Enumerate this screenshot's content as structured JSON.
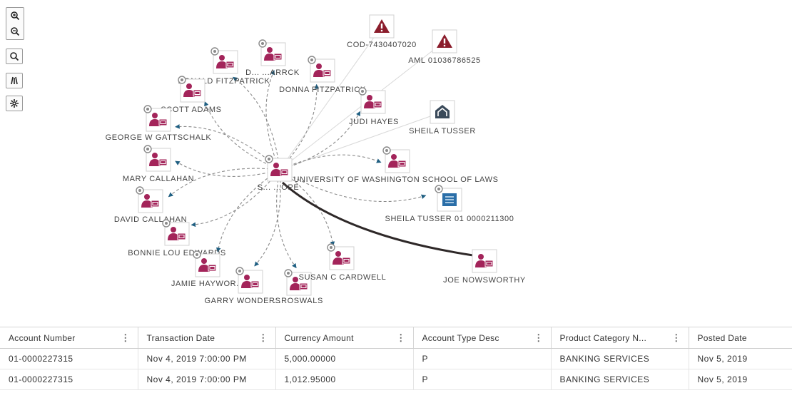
{
  "toolbar": {
    "zoom_in": "zoom-in-icon",
    "zoom_out": "zoom-out-icon",
    "reset": "reset-icon",
    "layout": "layout-icon",
    "settings": "settings-icon"
  },
  "colors": {
    "person": "#a3245a",
    "alert": "#8b1d2c",
    "house": "#3a4a5a",
    "account": "#2a6ea8",
    "edge": "#8a8a8a",
    "arrow": "#1f5f82",
    "strong_edge": "#2e2828"
  },
  "graph": {
    "center": {
      "id": "center",
      "label": "S... ...OPE",
      "type": "person",
      "badge": true
    },
    "nodes": [
      {
        "id": "n1",
        "label": "DONALD FITZPATRICK",
        "type": "person",
        "badge": true
      },
      {
        "id": "n2",
        "label": "D... ...ARRCK",
        "type": "person",
        "badge": true
      },
      {
        "id": "n3",
        "label": "DONNA FITZPATRICK",
        "type": "person",
        "badge": true
      },
      {
        "id": "n4",
        "label": "SCOTT ADAMS",
        "type": "person",
        "badge": true
      },
      {
        "id": "n5",
        "label": "GEORGE W GATTSCHALK",
        "type": "person",
        "badge": true
      },
      {
        "id": "n6",
        "label": "MARY CALLAHAN",
        "type": "person",
        "badge": true
      },
      {
        "id": "n7",
        "label": "DAVID CALLAHAN",
        "type": "person",
        "badge": true
      },
      {
        "id": "n8",
        "label": "BONNIE LOU EDWARDS",
        "type": "person",
        "badge": true
      },
      {
        "id": "n9",
        "label": "JAMIE HAYWOR...",
        "type": "person",
        "badge": true
      },
      {
        "id": "n10",
        "label": "GARRY WONDERS",
        "type": "person",
        "badge": true
      },
      {
        "id": "n11",
        "label": "...ROSWALS",
        "type": "person",
        "badge": true
      },
      {
        "id": "n12",
        "label": "SUSAN C CARDWELL",
        "type": "person",
        "badge": true
      },
      {
        "id": "n13",
        "label": "JUDI HAYES",
        "type": "person",
        "badge": true
      },
      {
        "id": "n14",
        "label": "UNIVERSITY OF WASHINGTON SCHOOL OF LAWS",
        "type": "person",
        "badge": true
      },
      {
        "id": "n15",
        "label": "COD-7430407020",
        "type": "alert",
        "badge": false
      },
      {
        "id": "n16",
        "label": "AML 01036786525",
        "type": "alert",
        "badge": false
      },
      {
        "id": "n17",
        "label": "SHEILA TUSSER",
        "type": "house",
        "badge": false
      },
      {
        "id": "n18",
        "label": "SHEILA TUSSER 01 0000211300",
        "type": "account",
        "badge": true
      },
      {
        "id": "n19",
        "label": "JOE NOWSWORTHY",
        "type": "person",
        "badge": false
      }
    ]
  },
  "table": {
    "columns": [
      {
        "label": "Account Number",
        "menu": true
      },
      {
        "label": "Transaction Date",
        "menu": true
      },
      {
        "label": "Currency Amount",
        "menu": true
      },
      {
        "label": "Account Type Desc",
        "menu": true
      },
      {
        "label": "Product Category N...",
        "menu": true
      },
      {
        "label": "Posted Date",
        "menu": false
      }
    ],
    "rows": [
      [
        "01-0000227315",
        "Nov 4, 2019 7:00:00 PM",
        "5,000.00000",
        "P",
        "BANKING SERVICES",
        "Nov 5, 2019"
      ],
      [
        "01-0000227315",
        "Nov 4, 2019 7:00:00 PM",
        "1,012.95000",
        "P",
        "BANKING SERVICES",
        "Nov 5, 2019"
      ]
    ]
  }
}
